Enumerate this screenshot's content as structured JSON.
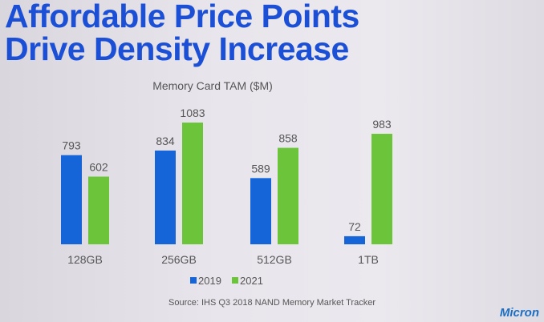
{
  "slide": {
    "title_line1": "Affordable Price Points",
    "title_line2": "Drive Density Increase",
    "source": "Source: IHS Q3 2018 NAND Memory Market Tracker",
    "logo": "Micron"
  },
  "chart_data": {
    "type": "bar",
    "title": "Memory Card TAM ($M)",
    "categories": [
      "128GB",
      "256GB",
      "512GB",
      "1TB"
    ],
    "series": [
      {
        "name": "2019",
        "values": [
          793,
          834,
          589,
          72
        ],
        "color": "#1565d8"
      },
      {
        "name": "2021",
        "values": [
          602,
          1083,
          858,
          983
        ],
        "color": "#6cc43a"
      }
    ],
    "ylim": [
      0,
      1083
    ],
    "grid": false,
    "legend": "bottom",
    "data_labels": true
  }
}
